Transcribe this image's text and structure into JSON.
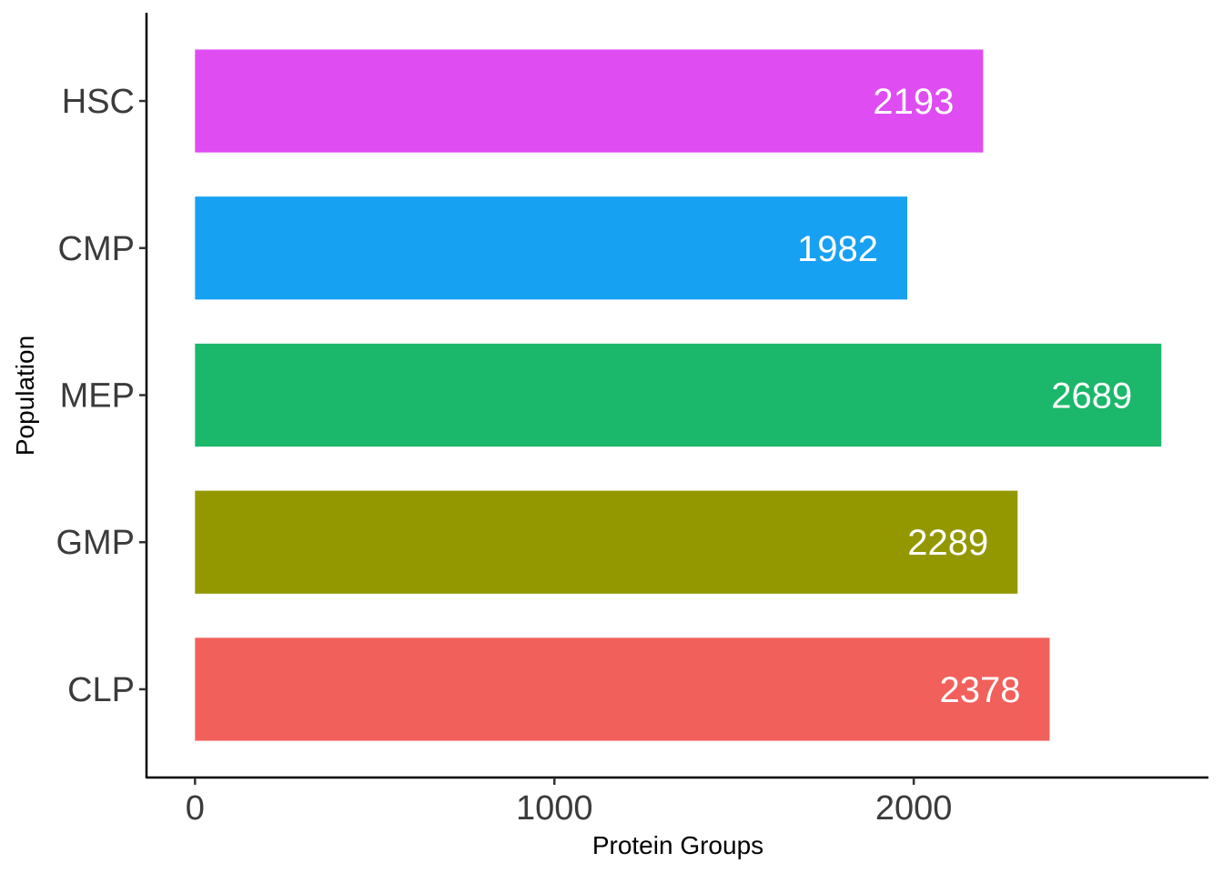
{
  "chart_data": {
    "type": "bar",
    "orientation": "horizontal",
    "categories": [
      "HSC",
      "CMP",
      "MEP",
      "GMP",
      "CLP"
    ],
    "values": [
      2193,
      1982,
      2689,
      2289,
      2378
    ],
    "colors": [
      "#DF4CF2",
      "#17A1F2",
      "#1BB76A",
      "#939800",
      "#F2605B"
    ],
    "data_labels": [
      "2193",
      "1982",
      "2689",
      "2289",
      "2378"
    ],
    "xlabel": "Protein Groups",
    "ylabel": "Population",
    "xlim": [
      -135,
      2820
    ],
    "x_ticks": [
      0,
      1000,
      2000
    ],
    "x_tick_labels": [
      "0",
      "1000",
      "2000"
    ],
    "grid": false,
    "legend": "none"
  }
}
